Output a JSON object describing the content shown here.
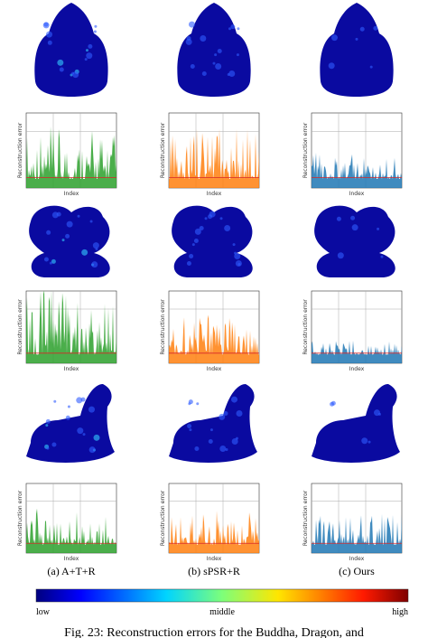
{
  "panels": [
    {
      "y_label": "Reconstruction error",
      "x_label": "Index"
    },
    {
      "y_label": "Reconstruction error",
      "x_label": "Index"
    },
    {
      "y_label": "Reconstruction error",
      "x_label": "Index"
    },
    {
      "y_label": "Reconstruction error",
      "x_label": "Index"
    },
    {
      "y_label": "Reconstruction error",
      "x_label": "Index"
    },
    {
      "y_label": "Reconstruction error",
      "x_label": "Index"
    },
    {
      "y_label": "Reconstruction error",
      "x_label": "Index"
    },
    {
      "y_label": "Reconstruction error",
      "x_label": "Index"
    },
    {
      "y_label": "Reconstruction error",
      "x_label": "Index"
    }
  ],
  "columns": [
    "(a) A+T+R",
    "(b) sPSR+R",
    "(c) Ours"
  ],
  "colorbar": {
    "low": "low",
    "middle": "middle",
    "high": "high"
  },
  "caption": "Fig. 23: Reconstruction errors for the Buddha, Dragon, and"
}
